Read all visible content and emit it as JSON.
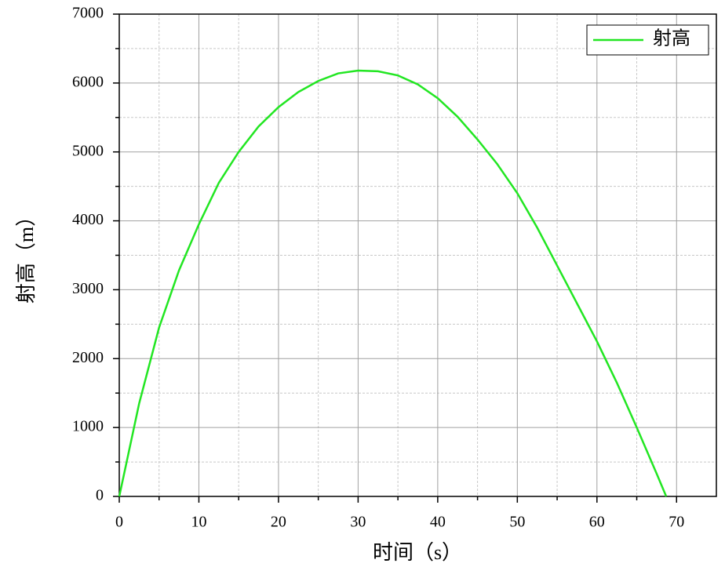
{
  "chart_data": {
    "type": "line",
    "x_label": "时间（s）",
    "y_label": "射高（m）",
    "x": [
      0,
      2.5,
      5,
      7.5,
      10,
      12.5,
      15,
      17.5,
      20,
      22.5,
      25,
      27.5,
      30,
      32.5,
      35,
      37.5,
      40,
      42.5,
      45,
      47.5,
      50,
      52.5,
      55,
      57.5,
      60,
      62.5,
      65,
      67.5,
      68.7
    ],
    "series": [
      {
        "name": "射高",
        "color": "#22e622",
        "values": [
          0,
          1350,
          2450,
          3280,
          3950,
          4550,
          5000,
          5370,
          5650,
          5870,
          6030,
          6140,
          6180,
          6170,
          6110,
          5980,
          5780,
          5510,
          5180,
          4820,
          4400,
          3900,
          3350,
          2800,
          2250,
          1650,
          1000,
          330,
          0
        ]
      }
    ],
    "xlim": [
      0,
      75
    ],
    "ylim": [
      0,
      7000
    ],
    "xticks": [
      0,
      10,
      20,
      30,
      40,
      50,
      60,
      70
    ],
    "yticks": [
      0,
      1000,
      2000,
      3000,
      4000,
      5000,
      6000,
      7000
    ],
    "minor_xticks": [
      5,
      15,
      25,
      35,
      45,
      55,
      65
    ],
    "minor_yticks": [
      500,
      1500,
      2500,
      3500,
      4500,
      5500,
      6500
    ],
    "grid": true,
    "legend": "upper right"
  }
}
